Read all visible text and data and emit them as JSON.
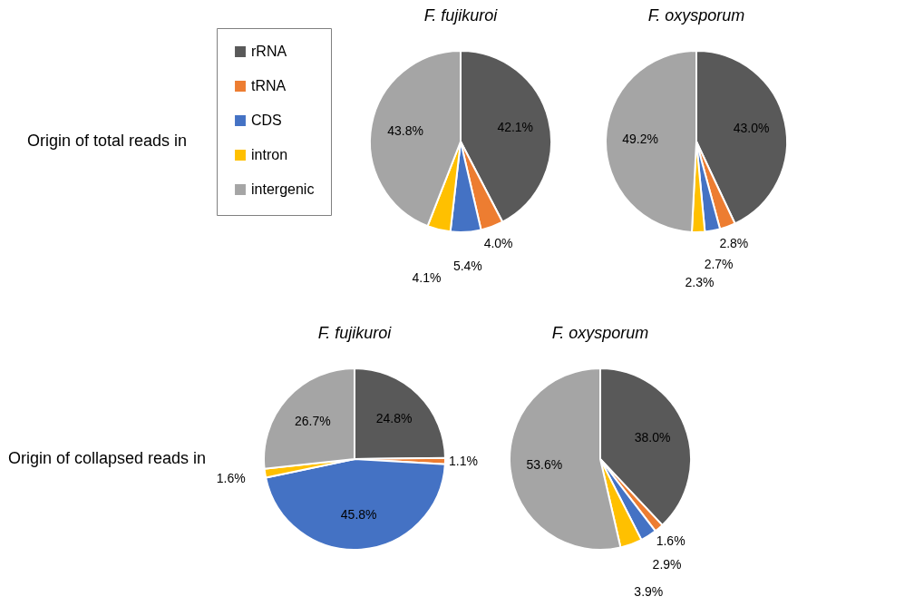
{
  "chart_data": [
    {
      "type": "pie",
      "title": "F. fujikuroi",
      "categories": [
        "rRNA",
        "tRNA",
        "CDS",
        "intron",
        "intergenic"
      ],
      "values": [
        42.1,
        4.0,
        5.4,
        4.1,
        43.8
      ],
      "value_labels": [
        "42.1%",
        "4.0%",
        "5.4%",
        "4.1%",
        "43.8%"
      ],
      "colors": [
        "#595959",
        "#ed7d31",
        "#4472c4",
        "#ffc000",
        "#a5a5a5"
      ],
      "legend": "left",
      "annotations": [
        "Origin of total reads in"
      ]
    },
    {
      "type": "pie",
      "title": "F. oxysporum",
      "categories": [
        null,
        null,
        null,
        null,
        null
      ],
      "values": [
        43.0,
        2.8,
        2.7,
        2.3,
        49.2
      ],
      "value_labels": [
        "43.0%",
        "2.8%",
        "2.7%",
        "2.3%",
        "49.2%"
      ],
      "colors": [
        "#595959",
        "#ed7d31",
        "#4472c4",
        "#ffc000",
        "#a5a5a5"
      ]
    },
    {
      "type": "pie",
      "title": "F. fujikuroi",
      "categories": [
        null,
        null,
        null,
        null,
        null
      ],
      "values": [
        24.8,
        1.1,
        45.8,
        1.6,
        26.7
      ],
      "value_labels": [
        "24.8%",
        "1.1%",
        "45.8%",
        "1.6%",
        "26.7%"
      ],
      "colors": [
        "#595959",
        "#ed7d31",
        "#4472c4",
        "#ffc000",
        "#a5a5a5"
      ],
      "annotations": [
        "Origin of collapsed reads in"
      ]
    },
    {
      "type": "pie",
      "title": "F. oxysporum",
      "categories": [
        null,
        null,
        null,
        null,
        null
      ],
      "values": [
        38.0,
        1.6,
        2.9,
        3.9,
        53.6
      ],
      "value_labels": [
        "38.0%",
        "1.6%",
        "2.9%",
        "3.9%",
        "53.6%"
      ],
      "colors": [
        "#595959",
        "#ed7d31",
        "#4472c4",
        "#ffc000",
        "#a5a5a5"
      ]
    }
  ]
}
